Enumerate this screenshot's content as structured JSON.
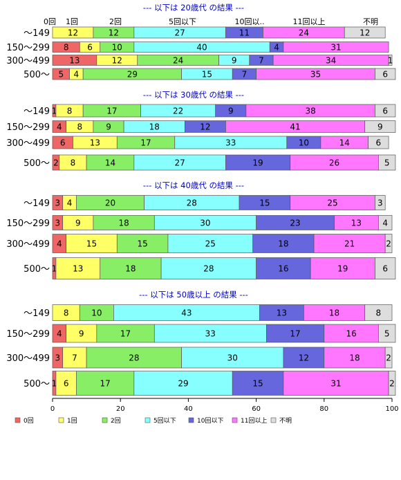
{
  "chart_data": {
    "type": "bar",
    "orientation": "horizontal",
    "stacked": true,
    "xlim": [
      0,
      100
    ],
    "xticks": [
      "0",
      "20",
      "40",
      "60",
      "80",
      "100"
    ],
    "legend_placement": "bottom",
    "series": [
      {
        "name": "0回",
        "color": "#ee6666"
      },
      {
        "name": "1回",
        "color": "#ffff66"
      },
      {
        "name": "2回",
        "color": "#88ee66"
      },
      {
        "name": "5回以下",
        "color": "#88ffff"
      },
      {
        "name": "10回以下",
        "color": "#6666dd"
      },
      {
        "name": "11回以上",
        "color": "#ff77ff"
      },
      {
        "name": "不明",
        "color": "#dddddd"
      }
    ],
    "header_labels": [
      "0回",
      "1回",
      "2回",
      "5回以下",
      "10回以..",
      "11回以上",
      "不明"
    ],
    "panels": [
      {
        "title": "--- 以下は 20歳代 の結果 ---",
        "categories": [
          "～149",
          "150～299",
          "300～499",
          "500～"
        ],
        "values": [
          [
            0,
            12,
            12,
            27,
            11,
            24,
            12
          ],
          [
            8,
            6,
            10,
            40,
            4,
            31,
            0
          ],
          [
            13,
            12,
            24,
            9,
            7,
            34,
            1
          ],
          [
            5,
            4,
            29,
            15,
            7,
            35,
            6
          ]
        ]
      },
      {
        "title": "--- 以下は 30歳代 の結果 ---",
        "categories": [
          "～149",
          "150～299",
          "300～499",
          "500～"
        ],
        "values": [
          [
            1,
            8,
            17,
            22,
            9,
            38,
            6
          ],
          [
            4,
            8,
            9,
            18,
            12,
            41,
            9
          ],
          [
            6,
            13,
            17,
            33,
            10,
            14,
            6
          ],
          [
            2,
            8,
            14,
            27,
            19,
            26,
            5
          ]
        ]
      },
      {
        "title": "--- 以下は 40歳代 の結果 ---",
        "categories": [
          "～149",
          "150～299",
          "300～499",
          "500～"
        ],
        "values": [
          [
            3,
            4,
            20,
            28,
            15,
            25,
            3
          ],
          [
            3,
            9,
            18,
            30,
            23,
            13,
            4
          ],
          [
            4,
            15,
            15,
            25,
            18,
            21,
            2
          ],
          [
            1,
            13,
            18,
            28,
            16,
            19,
            6
          ]
        ]
      },
      {
        "title": "--- 以下は 50歳以上 の結果 ---",
        "categories": [
          "～149",
          "150～299",
          "300～499",
          "500～"
        ],
        "values": [
          [
            0,
            8,
            10,
            43,
            13,
            18,
            8
          ],
          [
            4,
            9,
            17,
            33,
            17,
            16,
            5
          ],
          [
            3,
            7,
            28,
            30,
            12,
            18,
            2
          ],
          [
            1,
            6,
            17,
            29,
            15,
            31,
            2
          ]
        ]
      }
    ]
  }
}
